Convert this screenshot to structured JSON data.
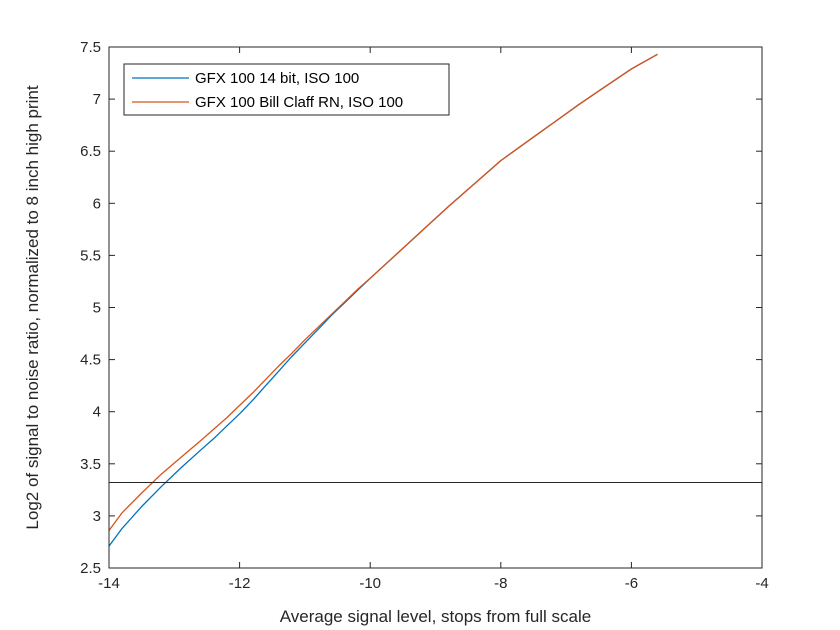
{
  "chart_data": {
    "type": "line",
    "title": "",
    "xlabel": "Average signal level, stops from full scale",
    "ylabel": "Log2 of signal to noise ratio, normalized to 8 inch high print",
    "xlim": [
      -14,
      -4
    ],
    "ylim": [
      2.5,
      7.5
    ],
    "xticks": [
      -14,
      -12,
      -10,
      -8,
      -6,
      -4
    ],
    "yticks": [
      2.5,
      3,
      3.5,
      4,
      4.5,
      5,
      5.5,
      6,
      6.5,
      7,
      7.5
    ],
    "xtick_labels": [
      "-14",
      "-12",
      "-10",
      "-8",
      "-6",
      "-4"
    ],
    "ytick_labels": [
      "2.5",
      "3",
      "3.5",
      "4",
      "4.5",
      "5",
      "5.5",
      "6",
      "6.5",
      "7",
      "7.5"
    ],
    "grid": false,
    "legend_position": "top-left",
    "series": [
      {
        "name": "GFX 100 14 bit, ISO 100",
        "color": "#0072BD",
        "x": [
          -14.0,
          -13.8,
          -13.5,
          -13.2,
          -12.9,
          -12.6,
          -12.4,
          -12.2,
          -12.0,
          -11.8,
          -11.6,
          -11.4,
          -11.2,
          -11.0,
          -10.8,
          -10.6,
          -10.4,
          -10.2,
          -10.0,
          -9.6,
          -9.2,
          -8.8,
          -8.4,
          -8.0,
          -7.6,
          -7.2,
          -6.8,
          -6.4,
          -6.0,
          -5.6
        ],
        "y": [
          2.71,
          2.88,
          3.09,
          3.28,
          3.46,
          3.63,
          3.74,
          3.86,
          3.98,
          4.11,
          4.25,
          4.39,
          4.53,
          4.66,
          4.79,
          4.92,
          5.04,
          5.16,
          5.28,
          5.51,
          5.74,
          5.97,
          6.19,
          6.41,
          6.59,
          6.77,
          6.95,
          7.12,
          7.29,
          7.43
        ]
      },
      {
        "name": "GFX 100 Bill Claff RN, ISO 100",
        "color": "#D95319",
        "x": [
          -14.0,
          -13.8,
          -13.5,
          -13.2,
          -12.9,
          -12.6,
          -12.4,
          -12.2,
          -12.0,
          -11.8,
          -11.6,
          -11.4,
          -11.2,
          -11.0,
          -10.8,
          -10.6,
          -10.4,
          -10.2,
          -10.0,
          -9.6,
          -9.2,
          -8.8,
          -8.4,
          -8.0,
          -7.6,
          -7.2,
          -6.8,
          -6.4,
          -6.0,
          -5.6
        ],
        "y": [
          2.86,
          3.03,
          3.22,
          3.4,
          3.56,
          3.72,
          3.83,
          3.94,
          4.06,
          4.18,
          4.31,
          4.44,
          4.56,
          4.69,
          4.81,
          4.93,
          5.05,
          5.17,
          5.28,
          5.51,
          5.74,
          5.97,
          6.19,
          6.41,
          6.59,
          6.77,
          6.95,
          7.12,
          7.29,
          7.43
        ]
      }
    ],
    "reference_line": {
      "y": 3.32,
      "color": "#262626"
    }
  }
}
